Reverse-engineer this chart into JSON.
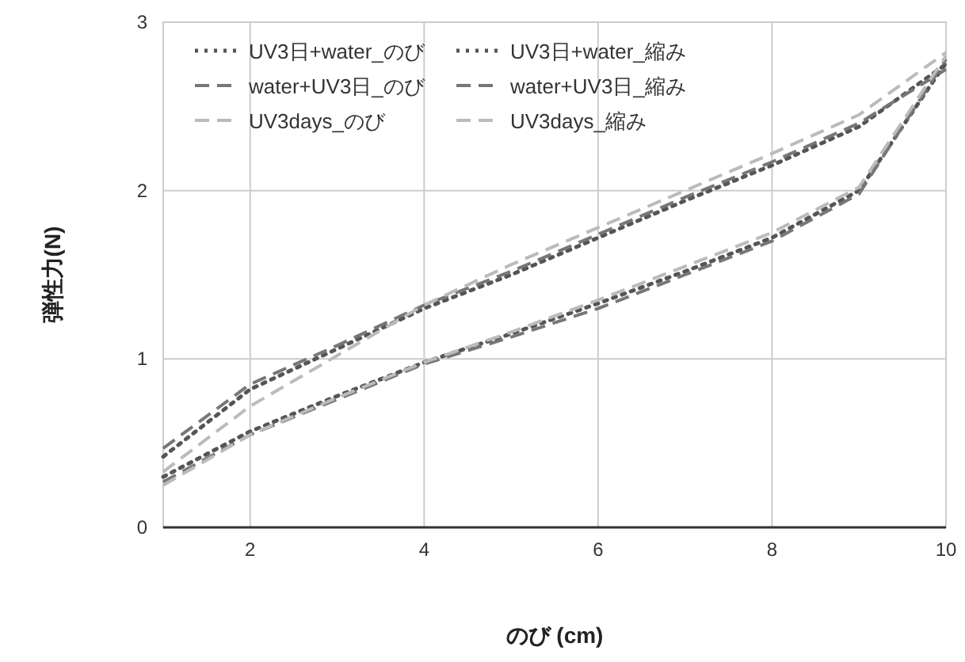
{
  "chart_data": {
    "type": "line",
    "xlabel": "のび (cm)",
    "ylabel": "弾性力(N)",
    "x": [
      1,
      2,
      3,
      4,
      5,
      6,
      7,
      8,
      9,
      10
    ],
    "xlim": [
      1,
      10
    ],
    "xticks": [
      2,
      4,
      6,
      8,
      10
    ],
    "ylim": [
      0,
      3
    ],
    "yticks": [
      0,
      1,
      2,
      3
    ],
    "grid": true,
    "legend": "top left",
    "series": [
      {
        "name": "UV3日+water_のび",
        "color": "#555555",
        "line_style": "dotted",
        "values": [
          0.42,
          0.82,
          1.06,
          1.3,
          1.5,
          1.72,
          1.94,
          2.15,
          2.38,
          2.75
        ]
      },
      {
        "name": "UV3日+water_縮み",
        "color": "#555555",
        "line_style": "dotted",
        "values": [
          0.3,
          0.57,
          0.78,
          0.98,
          1.15,
          1.33,
          1.52,
          1.72,
          2.0,
          2.76
        ]
      },
      {
        "name": "water+UV3日_のび",
        "color": "#777777",
        "line_style": "dashed",
        "values": [
          0.47,
          0.85,
          1.08,
          1.32,
          1.52,
          1.74,
          1.96,
          2.17,
          2.4,
          2.72
        ]
      },
      {
        "name": "water+UV3日_縮み",
        "color": "#777777",
        "line_style": "dashed",
        "values": [
          0.27,
          0.55,
          0.76,
          0.97,
          1.13,
          1.3,
          1.5,
          1.7,
          1.98,
          2.78
        ]
      },
      {
        "name": "UV3days_のび",
        "color": "#bbbbbb",
        "line_style": "dashed",
        "values": [
          0.33,
          0.72,
          1.02,
          1.32,
          1.56,
          1.78,
          2.0,
          2.22,
          2.45,
          2.82
        ]
      },
      {
        "name": "UV3days_縮み",
        "color": "#bbbbbb",
        "line_style": "dashed",
        "values": [
          0.25,
          0.55,
          0.77,
          0.98,
          1.16,
          1.35,
          1.55,
          1.75,
          2.02,
          2.8
        ]
      }
    ]
  }
}
